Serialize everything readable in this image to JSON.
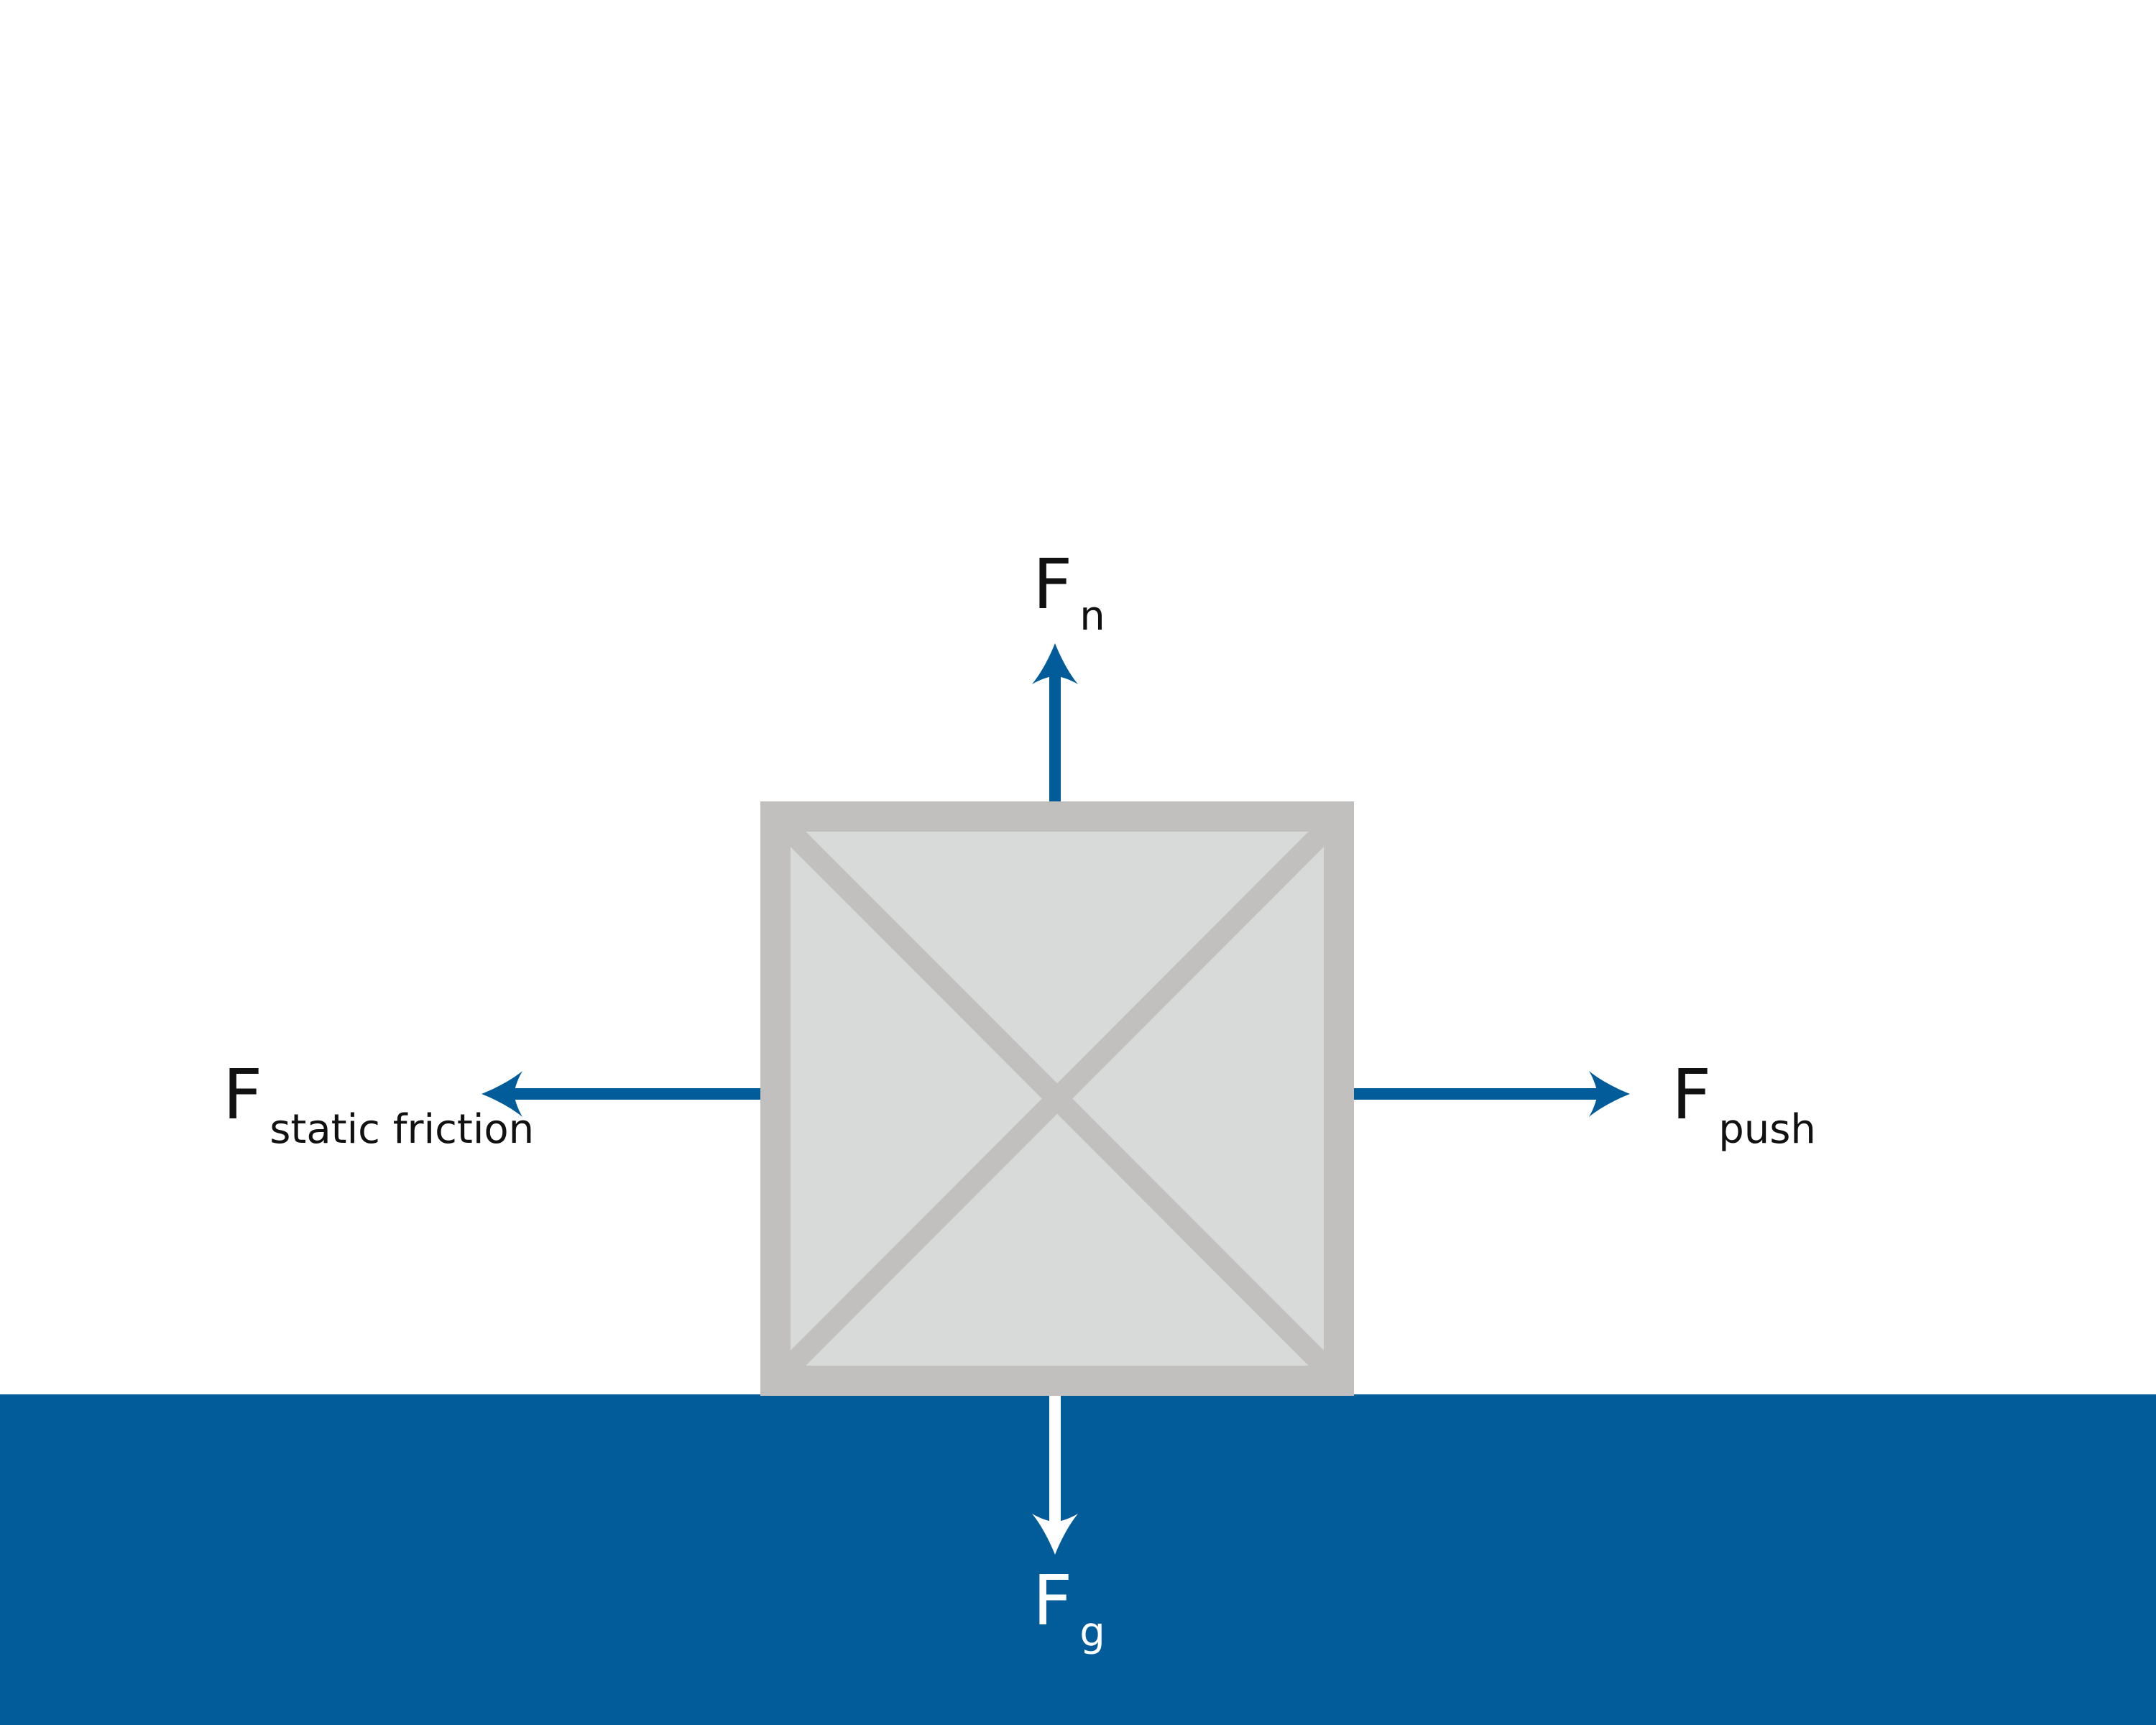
{
  "colors": {
    "background": "#ffffff",
    "ground": "#035c9a",
    "arrow": "#035c9a",
    "box_fill": "#d8d9d9",
    "box_stroke": "#c1c0be",
    "label_dark": "#111111",
    "label_light": "#ffffff"
  },
  "labels": {
    "normal": {
      "main": "F",
      "sub": "n"
    },
    "gravity": {
      "main": "F",
      "sub": "g"
    },
    "push": {
      "main": "F",
      "sub": "push"
    },
    "friction": {
      "main": "F",
      "sub": "static friction"
    }
  },
  "icons": {
    "block": "crossed-box-icon",
    "arrowhead": "arrowhead-icon"
  }
}
